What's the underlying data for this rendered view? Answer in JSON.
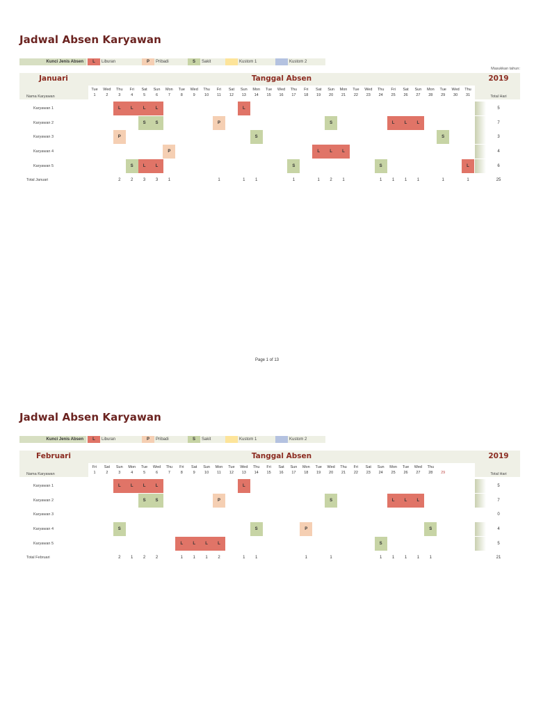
{
  "doc_title": "Jadwal Absen Karyawan",
  "legend": {
    "key_label": "Kunci Jenis Absen",
    "items": [
      {
        "code": "L",
        "label": "Liburan",
        "color": "#e07467"
      },
      {
        "code": "P",
        "label": "Pribadi",
        "color": "#f5cfb3"
      },
      {
        "code": "S",
        "label": "Sakit",
        "color": "#c7d4a5"
      },
      {
        "code": "",
        "label": "Kustom 1",
        "color": "#fde49a"
      },
      {
        "code": "",
        "label": "Kustom 2",
        "color": "#b4c2e0"
      }
    ]
  },
  "year_prompt": "Masukkan tahun:",
  "year": "2019",
  "section_title": "Tanggal Absen",
  "name_header": "Nama Karyawan",
  "total_header": "Total Hari",
  "footer": "Page 1 of 13",
  "colors": {
    "title": "#6b2320",
    "month": "#8b2b20",
    "band": "#eff0e6"
  },
  "months": [
    {
      "name": "Januari",
      "total_label": "Total Januari",
      "weekdays": [
        "Tue",
        "Wed",
        "Thu",
        "Fri",
        "Sat",
        "Sun",
        "Mon",
        "Tue",
        "Wed",
        "Thu",
        "Fri",
        "Sat",
        "Sun",
        "Mon",
        "Tue",
        "Wed",
        "Thu",
        "Fri",
        "Sat",
        "Sun",
        "Mon",
        "Tue",
        "Wed",
        "Thu",
        "Fri",
        "Sat",
        "Sun",
        "Mon",
        "Tue",
        "Wed",
        "Thu"
      ],
      "days": [
        "1",
        "2",
        "3",
        "4",
        "5",
        "6",
        "7",
        "8",
        "9",
        "10",
        "11",
        "12",
        "13",
        "14",
        "15",
        "16",
        "17",
        "18",
        "19",
        "20",
        "21",
        "22",
        "23",
        "24",
        "25",
        "26",
        "27",
        "28",
        "29",
        "30",
        "31"
      ],
      "employees": [
        {
          "name": "Karyawan 1",
          "total": "5",
          "absences": {
            "3": "L",
            "4": "L",
            "5": "L",
            "6": "L",
            "13": "L"
          }
        },
        {
          "name": "Karyawan 2",
          "total": "7",
          "absences": {
            "5": "S",
            "6": "S",
            "11": "P",
            "20": "S",
            "25": "L",
            "26": "L",
            "27": "L"
          }
        },
        {
          "name": "Karyawan 3",
          "total": "3",
          "absences": {
            "3": "P",
            "14": "S",
            "29": "S"
          }
        },
        {
          "name": "Karyawan 4",
          "total": "4",
          "absences": {
            "7": "P",
            "19": "L",
            "20": "L",
            "21": "L"
          }
        },
        {
          "name": "Karyawan 5",
          "total": "6",
          "absences": {
            "4": "S",
            "5": "L",
            "6": "L",
            "17": "S",
            "24": "S",
            "31": "L"
          }
        }
      ],
      "day_totals": {
        "3": "2",
        "4": "2",
        "5": "3",
        "6": "3",
        "7": "1",
        "11": "1",
        "13": "1",
        "14": "1",
        "17": "1",
        "19": "1",
        "20": "2",
        "21": "1",
        "24": "1",
        "25": "1",
        "26": "1",
        "27": "1",
        "29": "1",
        "31": "1"
      },
      "grand_total": "25"
    },
    {
      "name": "Februari",
      "total_label": "Total Februari",
      "weekdays": [
        "Fri",
        "Sat",
        "Sun",
        "Mon",
        "Tue",
        "Wed",
        "Thu",
        "Fri",
        "Sat",
        "Sun",
        "Mon",
        "Tue",
        "Wed",
        "Thu",
        "Fri",
        "Sat",
        "Sun",
        "Mon",
        "Tue",
        "Wed",
        "Thu",
        "Fri",
        "Sat",
        "Sun",
        "Mon",
        "Tue",
        "Wed",
        "Thu",
        ""
      ],
      "days": [
        "1",
        "2",
        "3",
        "4",
        "5",
        "6",
        "7",
        "8",
        "9",
        "10",
        "11",
        "12",
        "13",
        "14",
        "15",
        "16",
        "17",
        "18",
        "19",
        "20",
        "21",
        "22",
        "23",
        "24",
        "25",
        "26",
        "27",
        "28",
        "29"
      ],
      "employees": [
        {
          "name": "Karyawan 1",
          "total": "5",
          "absences": {
            "3": "L",
            "4": "L",
            "5": "L",
            "6": "L",
            "13": "L"
          }
        },
        {
          "name": "Karyawan 2",
          "total": "7",
          "absences": {
            "5": "S",
            "6": "S",
            "11": "P",
            "20": "S",
            "25": "L",
            "26": "L",
            "27": "L"
          }
        },
        {
          "name": "Karyawan 3",
          "total": "0",
          "absences": {}
        },
        {
          "name": "Karyawan 4",
          "total": "4",
          "absences": {
            "3": "S",
            "14": "S",
            "18": "P",
            "28": "S"
          }
        },
        {
          "name": "Karyawan 5",
          "total": "5",
          "absences": {
            "8": "L",
            "9": "L",
            "10": "L",
            "11": "L",
            "24": "S"
          }
        }
      ],
      "day_totals": {
        "3": "2",
        "4": "1",
        "5": "2",
        "6": "2",
        "8": "1",
        "9": "1",
        "10": "1",
        "11": "2",
        "13": "1",
        "14": "1",
        "18": "1",
        "20": "1",
        "24": "1",
        "25": "1",
        "26": "1",
        "27": "1",
        "28": "1"
      },
      "grand_total": "21"
    }
  ]
}
